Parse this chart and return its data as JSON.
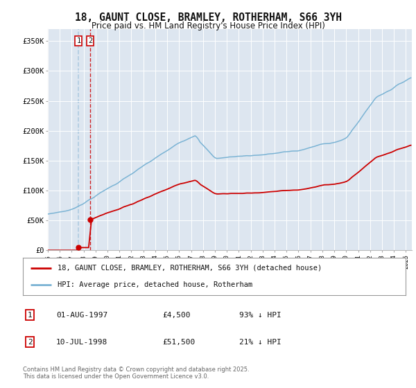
{
  "title": "18, GAUNT CLOSE, BRAMLEY, ROTHERHAM, S66 3YH",
  "subtitle": "Price paid vs. HM Land Registry's House Price Index (HPI)",
  "hpi_label": "HPI: Average price, detached house, Rotherham",
  "property_label": "18, GAUNT CLOSE, BRAMLEY, ROTHERHAM, S66 3YH (detached house)",
  "footer": "Contains HM Land Registry data © Crown copyright and database right 2025.\nThis data is licensed under the Open Government Licence v3.0.",
  "sale1_price": 4500,
  "sale2_price": 51500,
  "sale1_year": 1997.583,
  "sale2_year": 1998.542,
  "hpi_color": "#7ab3d4",
  "property_color": "#cc0000",
  "vline1_color": "#aac8e0",
  "vline2_color": "#cc0000",
  "background_plot": "#dde6f0",
  "background_fig": "#ffffff",
  "ylim": [
    0,
    370000
  ],
  "xlim_start": 1995.0,
  "xlim_end": 2025.5
}
